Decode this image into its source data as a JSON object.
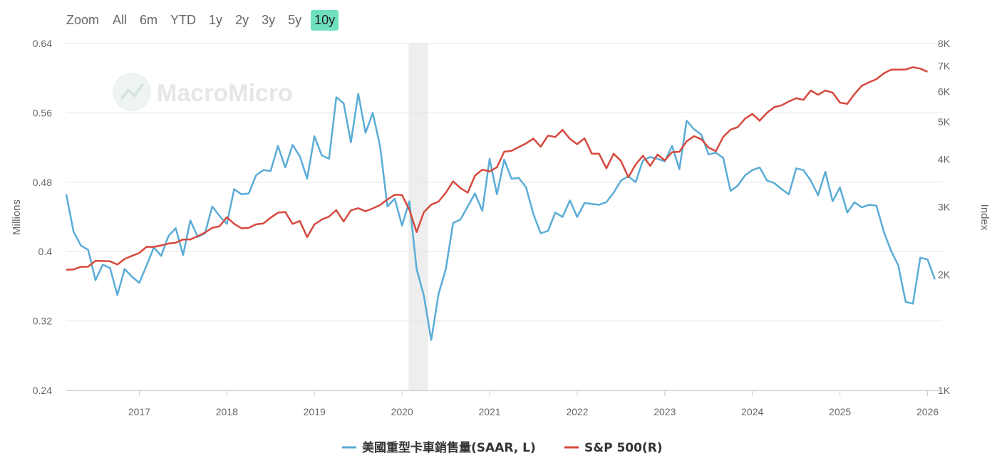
{
  "zoom": {
    "label": "Zoom",
    "buttons": [
      "All",
      "6m",
      "YTD",
      "1y",
      "2y",
      "3y",
      "5y",
      "10y"
    ],
    "active": "10y"
  },
  "watermark": "MacroMicro",
  "colors": {
    "accent": "#6fe0bf",
    "truck_series": "#5aacd6",
    "sp500_series": "#d6493d",
    "recession_band": "#eeeeee"
  },
  "chart_data": {
    "type": "line",
    "x_label": "",
    "left_axis": {
      "title": "Millions",
      "ticks": [
        "0.24",
        "0.32",
        "0.4",
        "0.48",
        "0.56",
        "0.64"
      ],
      "range": [
        0.24,
        0.64
      ]
    },
    "right_axis": {
      "title": "Index",
      "scale": "log",
      "ticks": [
        "1K",
        "2K",
        "3K",
        "4K",
        "5K",
        "6K",
        "7K",
        "8K"
      ],
      "tick_values": [
        1000,
        2000,
        3000,
        4000,
        5000,
        6000,
        7000,
        8000
      ],
      "range": [
        1000,
        8000
      ]
    },
    "x_axis": {
      "ticks": [
        "2017",
        "2018",
        "2019",
        "2020",
        "2021",
        "2022",
        "2023",
        "2024",
        "2025",
        "2026"
      ],
      "range": [
        "2016-03",
        "2026-03"
      ]
    },
    "shaded_period": {
      "start": "2020-02",
      "end": "2020-04"
    },
    "series": [
      {
        "name": "美國重型卡車銷售量(SAAR, L)",
        "axis": "left",
        "start": "2016-03",
        "values": [
          0.466,
          0.423,
          0.407,
          0.402,
          0.367,
          0.385,
          0.381,
          0.35,
          0.38,
          0.371,
          0.364,
          0.384,
          0.405,
          0.395,
          0.418,
          0.427,
          0.396,
          0.436,
          0.417,
          0.421,
          0.452,
          0.441,
          0.432,
          0.472,
          0.466,
          0.467,
          0.488,
          0.494,
          0.493,
          0.522,
          0.497,
          0.523,
          0.51,
          0.484,
          0.533,
          0.511,
          0.507,
          0.578,
          0.571,
          0.526,
          0.582,
          0.537,
          0.56,
          0.521,
          0.452,
          0.461,
          0.43,
          0.458,
          0.38,
          0.349,
          0.298,
          0.351,
          0.38,
          0.433,
          0.437,
          0.452,
          0.467,
          0.447,
          0.507,
          0.466,
          0.506,
          0.484,
          0.485,
          0.474,
          0.443,
          0.421,
          0.424,
          0.445,
          0.44,
          0.459,
          0.44,
          0.456,
          0.455,
          0.454,
          0.457,
          0.468,
          0.482,
          0.487,
          0.48,
          0.505,
          0.509,
          0.507,
          0.504,
          0.522,
          0.495,
          0.551,
          0.541,
          0.535,
          0.512,
          0.514,
          0.508,
          0.47,
          0.476,
          0.488,
          0.494,
          0.497,
          0.482,
          0.479,
          0.472,
          0.466,
          0.496,
          0.494,
          0.482,
          0.465,
          0.492,
          0.458,
          0.474,
          0.445,
          0.457,
          0.451,
          0.454,
          0.453,
          0.423,
          0.401,
          0.384,
          0.342,
          0.34,
          0.393,
          0.391,
          0.368
        ]
      },
      {
        "name": "S&P 500(R)",
        "axis": "right",
        "start": "2016-03",
        "values": [
          2060,
          2065,
          2097,
          2099,
          2174,
          2171,
          2168,
          2126,
          2199,
          2239,
          2279,
          2364,
          2363,
          2384,
          2411,
          2423,
          2470,
          2471,
          2519,
          2575,
          2648,
          2674,
          2824,
          2714,
          2641,
          2648,
          2705,
          2718,
          2816,
          2901,
          2914,
          2711,
          2760,
          2506,
          2704,
          2784,
          2834,
          2946,
          2752,
          2942,
          2980,
          2926,
          2977,
          3038,
          3141,
          3230,
          3226,
          2954,
          2584,
          2912,
          3044,
          3100,
          3271,
          3500,
          3363,
          3270,
          3622,
          3756,
          3714,
          3811,
          4181,
          4204,
          4298,
          4395,
          4523,
          4307,
          4606,
          4567,
          4766,
          4516,
          4374,
          4530,
          4132,
          4131,
          3785,
          4130,
          3955,
          3586,
          3872,
          4080,
          3840,
          4109,
          3970,
          4169,
          4180,
          4450,
          4589,
          4508,
          4288,
          4194,
          4568,
          4770,
          4846,
          5096,
          5244,
          5036,
          5278,
          5460,
          5522,
          5648,
          5762,
          5705,
          6033,
          5882,
          6032,
          5955,
          5612,
          5569,
          5911,
          6205,
          6339,
          6460,
          6688,
          6840,
          6840,
          6845,
          6940,
          6880,
          6750
        ]
      }
    ],
    "legend": {
      "position": "bottom-center"
    }
  }
}
